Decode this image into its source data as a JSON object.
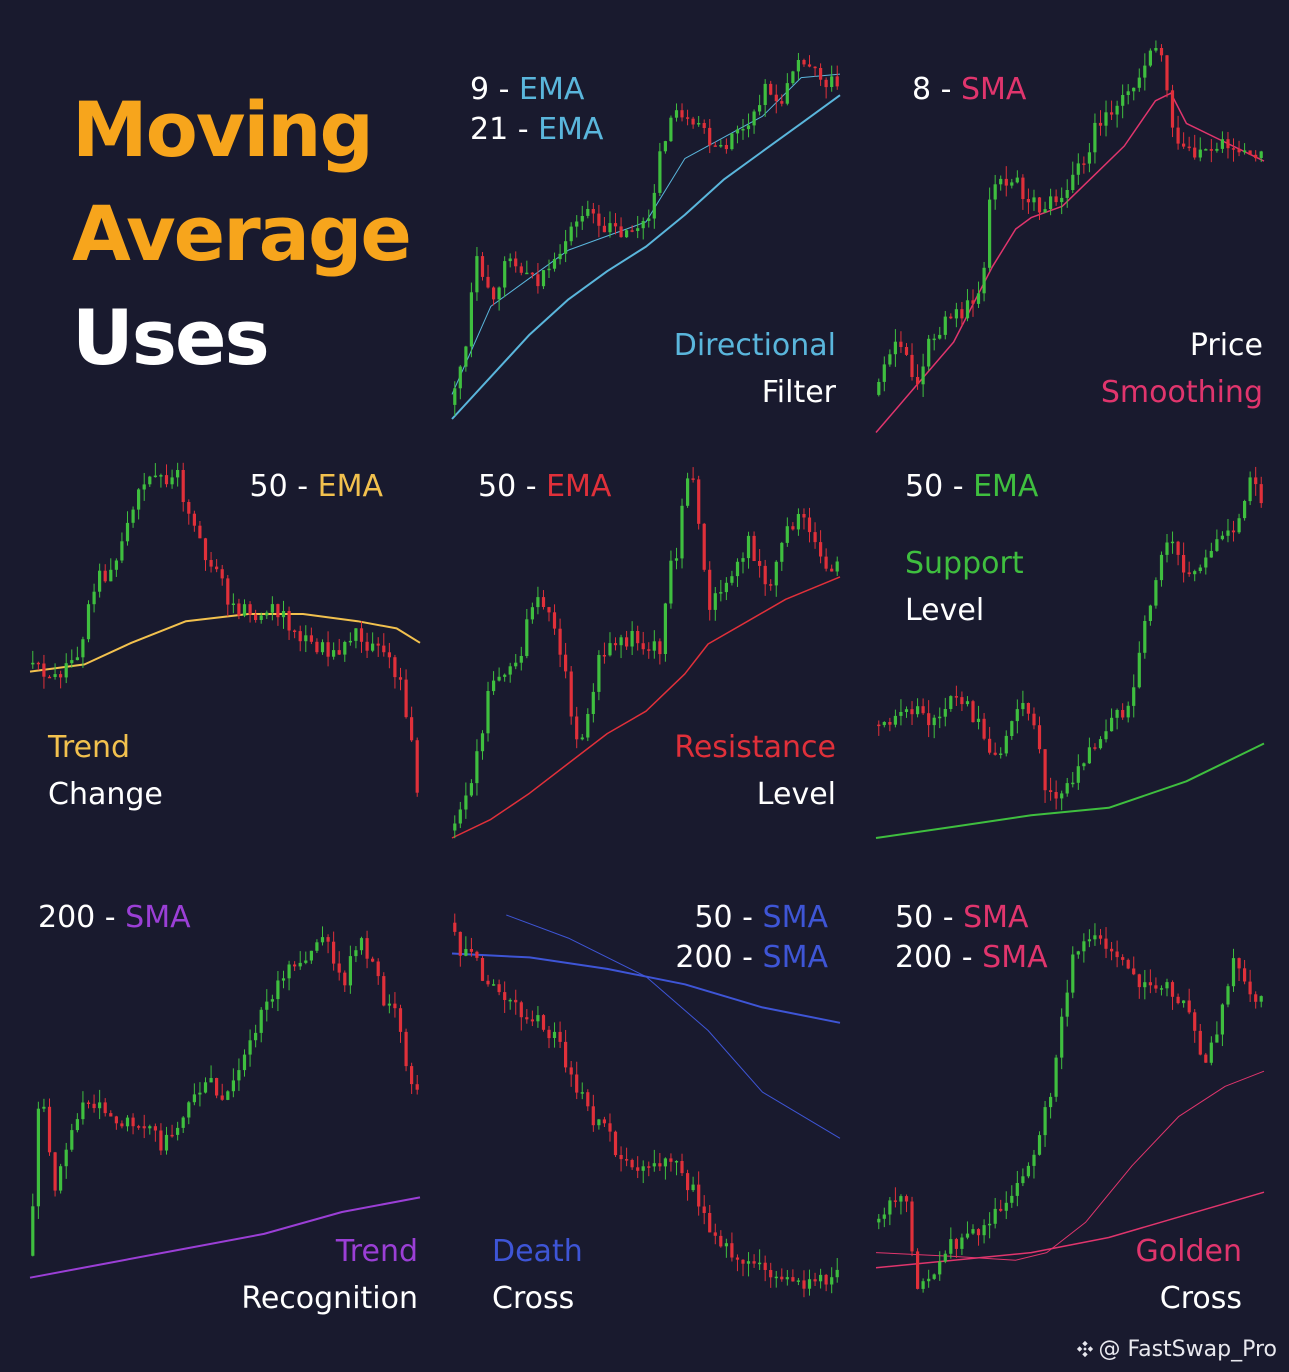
{
  "title": {
    "line1": "Moving",
    "line2": "Average",
    "line3": "Uses"
  },
  "watermark": "@ FastSwap_Pro",
  "colors": {
    "background": "#191a2e",
    "title": "#f7a51c",
    "up": "#3fbf3f",
    "down": "#e0303a",
    "ema_blue": "#5ab6dc",
    "sma_pink": "#e0356d",
    "ema_yellow": "#f2c14e",
    "ema_red": "#e0303a",
    "ema_green": "#3fbf3f",
    "sma_purple": "#9b3fd6",
    "sma_blue": "#3e55d6"
  },
  "chart_data": [
    {
      "type": "line",
      "style": "candlestick",
      "ma_labels": [
        {
          "num": "9",
          "name": "EMA",
          "color": "#5ab6dc"
        },
        {
          "num": "21",
          "name": "EMA",
          "color": "#5ab6dc"
        }
      ],
      "caption": [
        {
          "text": "Directional",
          "color": "#5ab6dc"
        },
        {
          "text": "Filter",
          "color": "#ffffff"
        }
      ],
      "trend": "up"
    },
    {
      "type": "line",
      "style": "candlestick",
      "ma_labels": [
        {
          "num": "8",
          "name": "SMA",
          "color": "#e0356d"
        }
      ],
      "caption": [
        {
          "text": "Price",
          "color": "#ffffff"
        },
        {
          "text": "Smoothing",
          "color": "#e0356d"
        }
      ],
      "trend": "up-then-drop"
    },
    {
      "type": "line",
      "style": "candlestick",
      "ma_labels": [
        {
          "num": "50",
          "name": "EMA",
          "color": "#f2c14e"
        }
      ],
      "caption": [
        {
          "text": "Trend",
          "color": "#f2c14e"
        },
        {
          "text": "Change",
          "color": "#ffffff"
        }
      ],
      "trend": "rise-then-fall"
    },
    {
      "type": "line",
      "style": "candlestick",
      "ma_labels": [
        {
          "num": "50",
          "name": "EMA",
          "color": "#e0303a"
        }
      ],
      "caption": [
        {
          "text": "Resistance",
          "color": "#e0303a"
        },
        {
          "text": "Level",
          "color": "#ffffff"
        }
      ],
      "trend": "up"
    },
    {
      "type": "line",
      "style": "candlestick",
      "ma_labels": [
        {
          "num": "50",
          "name": "EMA",
          "color": "#3fbf3f"
        }
      ],
      "caption": [
        {
          "text": "Support",
          "color": "#3fbf3f"
        },
        {
          "text": "Level",
          "color": "#ffffff"
        }
      ],
      "trend": "range-then-up"
    },
    {
      "type": "line",
      "style": "candlestick",
      "ma_labels": [
        {
          "num": "200",
          "name": "SMA",
          "color": "#9b3fd6"
        }
      ],
      "caption": [
        {
          "text": "Trend",
          "color": "#9b3fd6"
        },
        {
          "text": "Recognition",
          "color": "#ffffff"
        }
      ],
      "trend": "up"
    },
    {
      "type": "line",
      "style": "candlestick",
      "ma_labels": [
        {
          "num": "50",
          "name": "SMA",
          "color": "#3e55d6"
        },
        {
          "num": "200",
          "name": "SMA",
          "color": "#3e55d6"
        }
      ],
      "caption": [
        {
          "text": "Death",
          "color": "#3e55d6"
        },
        {
          "text": "Cross",
          "color": "#ffffff"
        }
      ],
      "trend": "down"
    },
    {
      "type": "line",
      "style": "candlestick",
      "ma_labels": [
        {
          "num": "50",
          "name": "SMA",
          "color": "#e0356d"
        },
        {
          "num": "200",
          "name": "SMA",
          "color": "#e0356d"
        }
      ],
      "caption": [
        {
          "text": "Golden",
          "color": "#e0356d"
        },
        {
          "text": "Cross",
          "color": "#ffffff"
        }
      ],
      "trend": "up"
    }
  ]
}
